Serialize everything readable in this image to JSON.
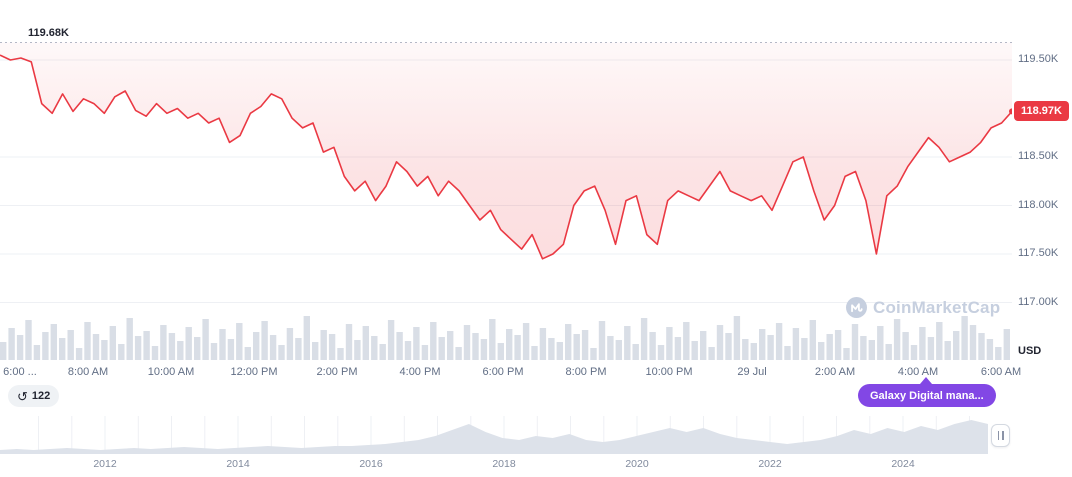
{
  "colors": {
    "line": "#ea3943",
    "fill_top": "rgba(234,57,67,0.03)",
    "fill_bottom": "rgba(234,57,67,0.17)",
    "grid": "#eef0f4",
    "dotted_line": "#b3bac8",
    "volume": "#d9dee6",
    "mini_fill": "#dde2ea",
    "axis_text": "#616e85",
    "current_badge_bg": "#ea3943",
    "news_badge_bg": "#8247e5",
    "watermark": "#c6cfdf"
  },
  "chart_data": {
    "type": "line",
    "unit": "USD",
    "high_watermark_label": "119.68K",
    "high_watermark_value": 119.68,
    "current_price_label": "118.97K",
    "current_price_value": 118.97,
    "y_ticks": [
      {
        "value": 119.5,
        "label": "119.50K"
      },
      {
        "value": 118.5,
        "label": "118.50K"
      },
      {
        "value": 118.0,
        "label": "118.00K"
      },
      {
        "value": 117.5,
        "label": "117.50K"
      },
      {
        "value": 117.0,
        "label": "117.00K"
      }
    ],
    "x_ticks": [
      "6:00 ...",
      "8:00 AM",
      "10:00 AM",
      "12:00 PM",
      "2:00 PM",
      "4:00 PM",
      "6:00 PM",
      "8:00 PM",
      "10:00 PM",
      "29 Jul",
      "2:00 AM",
      "4:00 AM",
      "6:00 AM"
    ],
    "price_series": {
      "interval_minutes": 15,
      "start": "6:00 AM",
      "end": "6:15 AM (+1d)",
      "values": [
        119.55,
        119.5,
        119.52,
        119.48,
        119.05,
        118.95,
        119.15,
        118.97,
        119.1,
        119.05,
        118.95,
        119.12,
        119.18,
        118.98,
        118.92,
        119.05,
        118.95,
        119.0,
        118.9,
        118.95,
        118.85,
        118.9,
        118.65,
        118.72,
        118.95,
        119.02,
        119.15,
        119.1,
        118.9,
        118.8,
        118.85,
        118.55,
        118.6,
        118.3,
        118.15,
        118.25,
        118.05,
        118.2,
        118.45,
        118.35,
        118.2,
        118.3,
        118.1,
        118.25,
        118.15,
        118.0,
        117.85,
        117.95,
        117.75,
        117.65,
        117.55,
        117.7,
        117.45,
        117.5,
        117.6,
        118.0,
        118.15,
        118.2,
        117.95,
        117.6,
        118.05,
        118.1,
        117.7,
        117.6,
        118.05,
        118.15,
        118.1,
        118.05,
        118.2,
        118.35,
        118.15,
        118.1,
        118.05,
        118.1,
        117.95,
        118.2,
        118.45,
        118.5,
        118.15,
        117.85,
        118.0,
        118.3,
        118.35,
        118.05,
        117.5,
        118.1,
        118.2,
        118.4,
        118.55,
        118.7,
        118.6,
        118.45,
        118.5,
        118.55,
        118.65,
        118.8,
        118.85,
        118.97
      ]
    },
    "volume_bars": [
      18,
      32,
      25,
      40,
      15,
      28,
      36,
      22,
      30,
      12,
      38,
      26,
      20,
      34,
      16,
      42,
      24,
      29,
      14,
      35,
      27,
      19,
      33,
      23,
      41,
      17,
      31,
      21,
      37,
      13,
      28,
      39,
      25,
      15,
      32,
      22,
      44,
      18,
      30,
      26,
      12,
      36,
      20,
      34,
      24,
      16,
      40,
      28,
      19,
      33,
      15,
      38,
      23,
      29,
      13,
      35,
      27,
      21,
      41,
      17,
      31,
      25,
      37,
      14,
      32,
      22,
      18,
      36,
      26,
      30,
      12,
      39,
      24,
      20,
      34,
      16,
      42,
      28,
      15,
      33,
      23,
      38,
      19,
      29,
      13,
      35,
      27,
      44,
      21,
      17,
      31,
      25,
      37,
      14,
      32,
      22,
      40,
      18,
      26,
      30,
      12,
      36,
      24,
      20,
      34,
      16,
      41,
      28,
      15,
      33,
      23,
      38,
      19,
      29,
      44,
      35,
      27,
      21,
      13,
      31
    ],
    "timeline": {
      "years": [
        "2012",
        "2014",
        "2016",
        "2018",
        "2020",
        "2022",
        "2024"
      ],
      "activity": [
        4,
        5,
        4,
        5,
        6,
        5,
        4,
        5,
        6,
        5,
        6,
        7,
        6,
        5,
        6,
        7,
        8,
        7,
        6,
        7,
        8,
        8,
        9,
        10,
        12,
        14,
        18,
        24,
        30,
        22,
        16,
        14,
        18,
        16,
        20,
        14,
        12,
        14,
        18,
        22,
        26,
        22,
        26,
        20,
        16,
        14,
        12,
        10,
        12,
        14,
        18,
        24,
        20,
        26,
        22,
        28,
        24,
        30,
        34,
        30
      ]
    }
  },
  "badges": {
    "history_count": "122",
    "news_label": "Galaxy Digital mana..."
  },
  "watermark": {
    "text": "CoinMarketCap"
  }
}
